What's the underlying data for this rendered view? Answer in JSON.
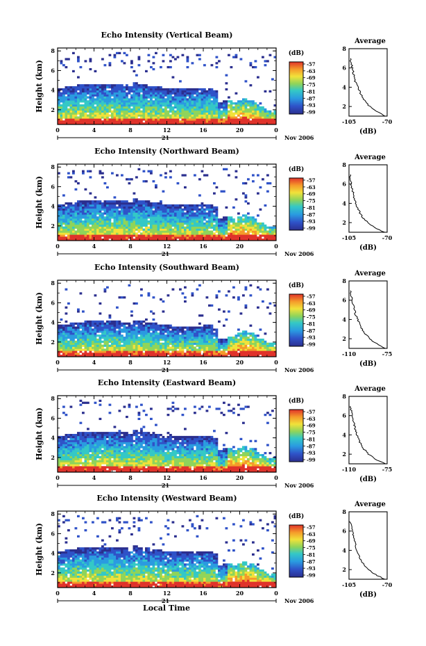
{
  "figure": {
    "xlabel_global": "Local Time",
    "date_label": "Nov 2006",
    "day_label": "21",
    "y_axis_label": "Height (km)",
    "cbar_unit": "(dB)",
    "avg_title": "Average",
    "avg_xlabel": "(dB)"
  },
  "chart_data": [
    {
      "type": "heatmap",
      "title": "Echo Intensity (Vertical Beam)",
      "ylabel": "Height (km)",
      "x_ticks": [
        "0",
        "4",
        "8",
        "12",
        "16",
        "20",
        "0"
      ],
      "y_ticks": [
        "2",
        "4",
        "6",
        "8"
      ],
      "xlim": [
        0,
        24
      ],
      "ylim": [
        0.5,
        8.3
      ],
      "colorbar": {
        "unit": "(dB)",
        "ticks": [
          "-57",
          "-63",
          "-69",
          "-75",
          "-81",
          "-87",
          "-93",
          "-99"
        ]
      },
      "profile": {
        "title": "Average",
        "xlabel": "(dB)",
        "x_ticks": [
          "-105",
          "-70"
        ],
        "xlim": [
          -105,
          -70
        ],
        "y_ticks": [
          "2",
          "4",
          "6",
          "8"
        ],
        "height_km": [
          1.0,
          1.5,
          2.0,
          2.5,
          3.0,
          3.5,
          4.0,
          4.5,
          5.0,
          5.5,
          6.0,
          6.5,
          7.0
        ],
        "db": [
          -72,
          -80,
          -86,
          -90,
          -93,
          -95,
          -97,
          -99,
          -100,
          -101,
          -102,
          -103,
          -104
        ]
      }
    },
    {
      "type": "heatmap",
      "title": "Echo Intensity (Northward Beam)",
      "ylabel": "Height (km)",
      "x_ticks": [
        "0",
        "4",
        "8",
        "12",
        "16",
        "20",
        "0"
      ],
      "y_ticks": [
        "2",
        "4",
        "6",
        "8"
      ],
      "xlim": [
        0,
        24
      ],
      "ylim": [
        0.5,
        8.3
      ],
      "colorbar": {
        "unit": "(dB)",
        "ticks": [
          "-57",
          "-63",
          "-69",
          "-75",
          "-81",
          "-87",
          "-93",
          "-99"
        ]
      },
      "profile": {
        "title": "Average",
        "xlabel": "(dB)",
        "x_ticks": [
          "-105",
          "-70"
        ],
        "xlim": [
          -105,
          -70
        ],
        "y_ticks": [
          "2",
          "4",
          "6",
          "8"
        ],
        "height_km": [
          1.0,
          1.5,
          2.0,
          2.5,
          3.0,
          3.5,
          4.0,
          4.5,
          5.0,
          5.5,
          6.0,
          6.5,
          7.0
        ],
        "db": [
          -73,
          -82,
          -88,
          -92,
          -95,
          -97,
          -99,
          -100,
          -101,
          -102,
          -103,
          -104,
          -104
        ]
      }
    },
    {
      "type": "heatmap",
      "title": "Echo Intensity (Southward Beam)",
      "ylabel": "Height (km)",
      "x_ticks": [
        "0",
        "4",
        "8",
        "12",
        "16",
        "20",
        "0"
      ],
      "y_ticks": [
        "2",
        "4",
        "6",
        "8"
      ],
      "xlim": [
        0,
        24
      ],
      "ylim": [
        0.5,
        8.3
      ],
      "colorbar": {
        "unit": "(dB)",
        "ticks": [
          "-57",
          "-63",
          "-69",
          "-75",
          "-81",
          "-87",
          "-93",
          "-99"
        ]
      },
      "profile": {
        "title": "Average",
        "xlabel": "(dB)",
        "x_ticks": [
          "-110",
          "-75"
        ],
        "xlim": [
          -110,
          -75
        ],
        "y_ticks": [
          "2",
          "4",
          "6",
          "8"
        ],
        "height_km": [
          1.0,
          1.5,
          2.0,
          2.5,
          3.0,
          3.5,
          4.0,
          4.5,
          5.0,
          5.5,
          6.0,
          6.5,
          7.0
        ],
        "db": [
          -77,
          -85,
          -91,
          -95,
          -98,
          -100,
          -102,
          -104,
          -105,
          -106,
          -107,
          -108,
          -109
        ]
      }
    },
    {
      "type": "heatmap",
      "title": "Echo Intensity (Eastward Beam)",
      "ylabel": "Height (km)",
      "x_ticks": [
        "0",
        "4",
        "8",
        "12",
        "16",
        "20",
        "0"
      ],
      "y_ticks": [
        "2",
        "4",
        "6",
        "8"
      ],
      "xlim": [
        0,
        24
      ],
      "ylim": [
        0.5,
        8.3
      ],
      "colorbar": {
        "unit": "(dB)",
        "ticks": [
          "-57",
          "-63",
          "-69",
          "-75",
          "-81",
          "-87",
          "-93",
          "-99"
        ]
      },
      "profile": {
        "title": "Average",
        "xlabel": "(dB)",
        "x_ticks": [
          "-110",
          "-75"
        ],
        "xlim": [
          -110,
          -75
        ],
        "y_ticks": [
          "2",
          "4",
          "6",
          "8"
        ],
        "height_km": [
          1.0,
          1.5,
          2.0,
          2.5,
          3.0,
          3.5,
          4.0,
          4.5,
          5.0,
          5.5,
          6.0,
          6.5,
          7.0
        ],
        "db": [
          -77,
          -86,
          -92,
          -96,
          -99,
          -101,
          -103,
          -104,
          -105,
          -106,
          -107,
          -108,
          -109
        ]
      }
    },
    {
      "type": "heatmap",
      "title": "Echo Intensity (Westward Beam)",
      "ylabel": "Height (km)",
      "x_ticks": [
        "0",
        "4",
        "8",
        "12",
        "16",
        "20",
        "0"
      ],
      "y_ticks": [
        "2",
        "4",
        "6",
        "8"
      ],
      "xlim": [
        0,
        24
      ],
      "ylim": [
        0.5,
        8.3
      ],
      "colorbar": {
        "unit": "(dB)",
        "ticks": [
          "-57",
          "-63",
          "-69",
          "-75",
          "-81",
          "-87",
          "-93",
          "-99"
        ]
      },
      "profile": {
        "title": "Average",
        "xlabel": "(dB)",
        "x_ticks": [
          "-105",
          "-70"
        ],
        "xlim": [
          -105,
          -70
        ],
        "y_ticks": [
          "2",
          "4",
          "6",
          "8"
        ],
        "height_km": [
          1.0,
          1.5,
          2.0,
          2.5,
          3.0,
          3.5,
          4.0,
          4.5,
          5.0,
          5.5,
          6.0,
          6.5,
          7.0
        ],
        "db": [
          -72,
          -81,
          -87,
          -91,
          -94,
          -96,
          -98,
          -99,
          -100,
          -101,
          -102,
          -103,
          -104
        ]
      }
    }
  ]
}
